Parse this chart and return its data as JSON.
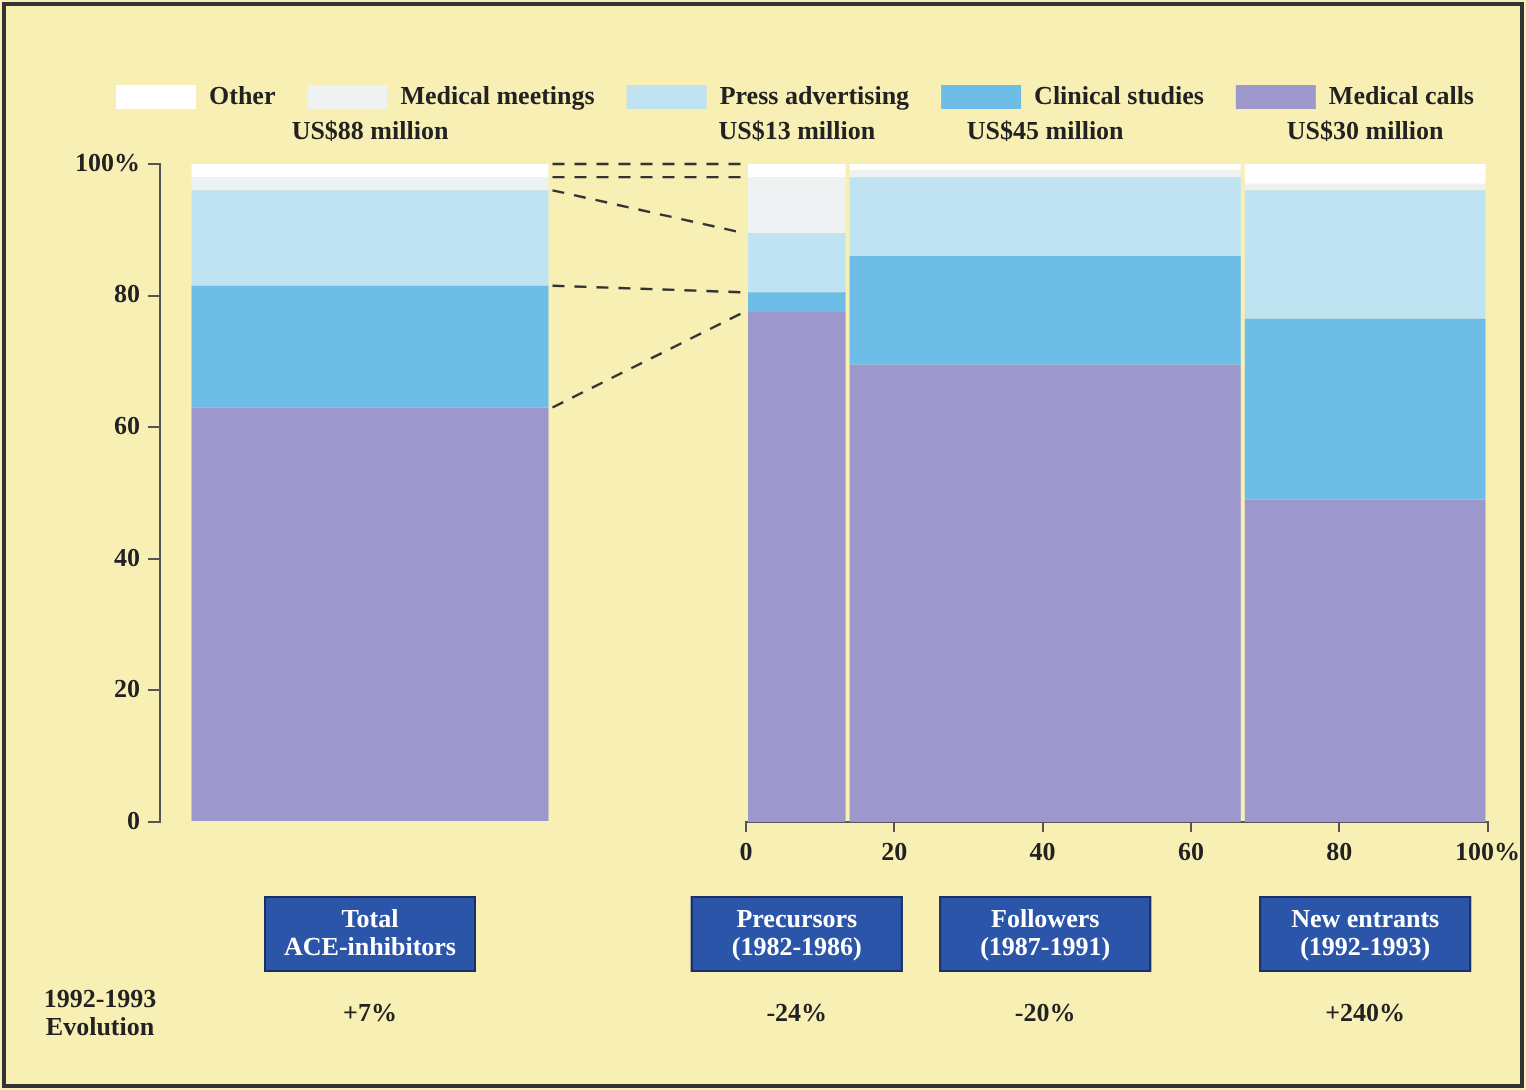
{
  "chart_data": [
    {
      "type": "bar",
      "stacked": true,
      "legend": "top",
      "categories": [
        "Total ACE-inhibitors"
      ],
      "series": [
        {
          "name": "Medical calls",
          "color": "#9d98cc",
          "values": [
            63
          ]
        },
        {
          "name": "Clinical studies",
          "color": "#6ebde6",
          "values": [
            18.5
          ]
        },
        {
          "name": "Press advertising",
          "color": "#bfe3f1",
          "values": [
            14.5
          ]
        },
        {
          "name": "Medical meetings",
          "color": "#eef2f2",
          "values": [
            2
          ]
        },
        {
          "name": "Other",
          "color": "#ffffff",
          "values": [
            2
          ]
        }
      ],
      "ylim": [
        0,
        100
      ],
      "yticks": [
        0,
        20,
        40,
        60,
        80,
        {
          "value": 100,
          "label": "100%"
        }
      ],
      "annotations": [
        {
          "text": "US$88 million",
          "x": "Total ACE-inhibitors",
          "y": 100
        },
        "1992-1993 Evolution",
        "+7%"
      ]
    },
    {
      "type": "bar",
      "stacked": true,
      "x": [
        6.85,
        40.35,
        83.5
      ],
      "series": [
        {
          "color": "#9d98cc",
          "values": [
            77.5,
            69.5,
            49
          ]
        },
        {
          "color": "#6ebde6",
          "values": [
            3,
            16.5,
            27.5
          ]
        },
        {
          "color": "#bfe3f1",
          "values": [
            9,
            12,
            19.5
          ]
        },
        {
          "color": "#eef2f2",
          "values": [
            8.5,
            1,
            1
          ]
        },
        {
          "color": "#ffffff",
          "values": [
            2,
            1,
            3
          ]
        }
      ],
      "xlim": [
        0,
        100
      ],
      "xticks": [
        0,
        20,
        40,
        60,
        80,
        {
          "value": 100,
          "label": "100%"
        }
      ],
      "ylim": [
        0,
        100
      ],
      "tick_labels": "x",
      "annotations": [
        {
          "text": "US$13 million",
          "x": 6.85,
          "y": 100
        },
        {
          "text": "US$45 million",
          "x": 40.35,
          "y": 100
        },
        {
          "text": "US$30 million",
          "x": 83.5,
          "y": 100
        },
        "Precursors (1982-1986)",
        "Followers (1987-1991)",
        "New entrants (1992-1993)",
        "-24%",
        "-20%",
        "+240%"
      ]
    }
  ]
}
